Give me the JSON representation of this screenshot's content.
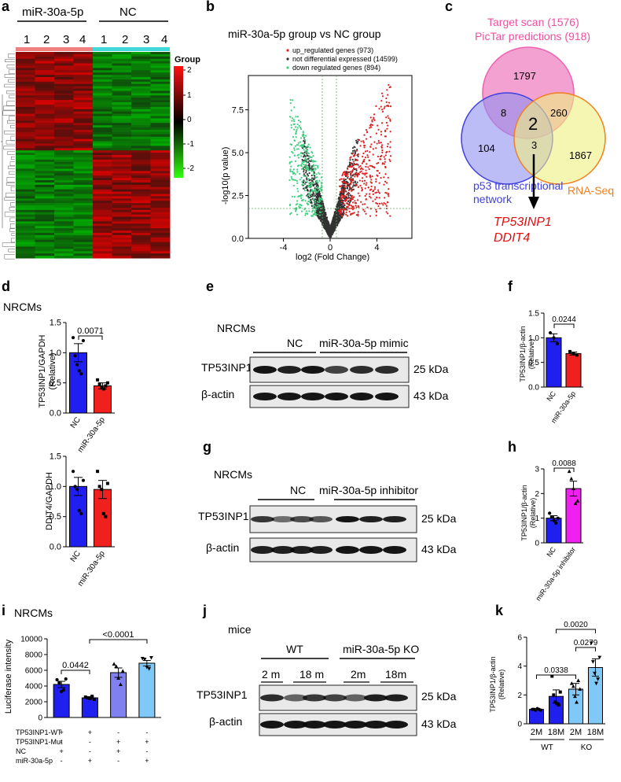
{
  "panels": {
    "a": {
      "label": "a",
      "group1": "miR-30a-5p",
      "group2": "NC",
      "lanes": [
        "1",
        "2",
        "3",
        "4",
        "1",
        "2",
        "3",
        "4"
      ],
      "legend_title": "Group",
      "legend_ticks": [
        "2",
        "1",
        "0",
        "-1",
        "-2"
      ]
    },
    "b": {
      "label": "b",
      "title": "miR-30a-5p group vs NC group",
      "legend": [
        "up_regulated genes (973)",
        "not differential expressed (14599)",
        "down regulated genes (894)"
      ],
      "xlabel": "log2 (Fold Change)",
      "ylabel": "-log10(p value)",
      "xticks": [
        "-4",
        "0",
        "4"
      ],
      "yticks": [
        "0.0",
        "2.5",
        "5.0",
        "7.5"
      ]
    },
    "c": {
      "label": "c",
      "title1": "Target scan (1576)",
      "title2": "PicTar predictions (918)",
      "n_top": "1797",
      "n_left_mid": "8",
      "n_right_mid": "260",
      "n_center": "2",
      "n_left": "104",
      "n_bottom_mid": "3",
      "n_right": "1867",
      "p53_line1": "p53 transcriptional",
      "p53_line2": "network",
      "rnaseq": "RNA-Seq",
      "gene1": "TP53INP1",
      "gene2": "DDIT4"
    },
    "d": {
      "label": "d",
      "cell": "NRCMs",
      "top_ylabel_1": "TP53INP1/GAPDH",
      "top_ylabel_2": "(Relative)",
      "top_pvalue": "0.0071",
      "top_yticks": [
        "0.0",
        "0.5",
        "1.0",
        "1.5"
      ],
      "bottom_ylabel": "DDIT4/GAPDH",
      "bottom_yticks": [
        "0.0",
        "0.5",
        "1.0",
        "1.5"
      ],
      "xcats": [
        "NC",
        "miR-30a-5p"
      ]
    },
    "e": {
      "label": "e",
      "cell": "NRCMs",
      "grp1": "NC",
      "grp2": "miR-30a-5p mimic",
      "band1": "TP53INP1",
      "band2": "β-actin",
      "kda1": "25 kDa",
      "kda2": "43 kDa"
    },
    "f": {
      "label": "f",
      "ylabel_1": "TP53INP1/β-actin",
      "ylabel_2": "(Relative)",
      "pvalue": "0.0244",
      "yticks": [
        "0.0",
        "0.5",
        "1.0",
        "1.5"
      ],
      "xcats": [
        "NC",
        "miR-30a-5p"
      ]
    },
    "g": {
      "label": "g",
      "cell": "NRCMs",
      "grp1": "NC",
      "grp2": "miR-30a-5p inhibitor",
      "band1": "TP53INP1",
      "band2": "β-actin",
      "kda1": "25 kDa",
      "kda2": "43 kDa"
    },
    "h": {
      "label": "h",
      "ylabel_1": "TP53INP1/β-actin",
      "ylabel_2": "(Relative)",
      "pvalue": "0.0088",
      "yticks": [
        "0",
        "1",
        "2",
        "3"
      ],
      "xcats": [
        "NC",
        "miR-30a-5p inhibitor"
      ]
    },
    "i": {
      "label": "i",
      "cell": "NRCMs",
      "ylabel": "Luciferase intensity",
      "yticks": [
        "0",
        "2000",
        "4000",
        "6000",
        "8000",
        "10000"
      ],
      "p1": "0.0442",
      "p2": "<0.0001",
      "rows": [
        {
          "name": "TP53INP1-WT",
          "signs": [
            "+",
            "+",
            "-",
            "-"
          ]
        },
        {
          "name": "TP53INP1-Mut",
          "signs": [
            "-",
            "-",
            "+",
            "+"
          ]
        },
        {
          "name": "NC",
          "signs": [
            "+",
            "-",
            "+",
            "-"
          ]
        },
        {
          "name": "miR-30a-5p",
          "signs": [
            "-",
            "+",
            "-",
            "+"
          ]
        }
      ]
    },
    "j": {
      "label": "j",
      "cell": "mice",
      "grp1": "WT",
      "grp2": "miR-30a-5p KO",
      "sub1": "2 m",
      "sub2": "18 m",
      "sub3": "2m",
      "sub4": "18m",
      "band1": "TP53INP1",
      "band2": "β-actin",
      "kda1": "25 kDa",
      "kda2": "43 kDa"
    },
    "k": {
      "label": "k",
      "ylabel_1": "TP53INP1/β-actin",
      "ylabel_2": "(Relative)",
      "yticks": [
        "0",
        "2",
        "4",
        "6"
      ],
      "xcats": [
        "2M",
        "18M",
        "2M",
        "18M"
      ],
      "g1": "WT",
      "g2": "KO",
      "p1": "0.0338",
      "p2": "0.0279",
      "p3": "0.0020"
    }
  },
  "colors": {
    "nc_blue": "#1f1ff0",
    "mir_red": "#f0201f",
    "magenta": "#f020f0",
    "lightblue": "#80c8f8",
    "purple": "#8080f0",
    "venn_pink": "#f060b0",
    "venn_blue": "#4040e0",
    "venn_orange": "#f08020",
    "gene_red": "#e01010"
  },
  "chart_data": [
    {
      "type": "bar",
      "panel": "d-top",
      "categories": [
        "NC",
        "miR-30a-5p"
      ],
      "values": [
        1.0,
        0.45
      ],
      "errors": [
        0.15,
        0.05
      ],
      "points": [
        [
          1.25,
          0.95,
          0.8,
          0.7,
          0.65,
          1.2
        ],
        [
          0.55,
          0.48,
          0.42,
          0.4,
          0.45,
          0.5
        ]
      ],
      "ylim": [
        0,
        1.5
      ]
    },
    {
      "type": "bar",
      "panel": "d-bottom",
      "categories": [
        "NC",
        "miR-30a-5p"
      ],
      "values": [
        1.0,
        0.95
      ],
      "errors": [
        0.15,
        0.15
      ],
      "points": [
        [
          1.25,
          1.0,
          0.95,
          0.6,
          0.55,
          1.1
        ],
        [
          1.25,
          1.0,
          0.95,
          0.55,
          0.5,
          1.05
        ]
      ],
      "ylim": [
        0,
        1.5
      ]
    },
    {
      "type": "bar",
      "panel": "f",
      "categories": [
        "NC",
        "miR-30a-5p"
      ],
      "values": [
        1.0,
        0.68
      ],
      "errors": [
        0.08,
        0.03
      ],
      "points": [
        [
          1.1,
          1.0,
          0.88
        ],
        [
          0.72,
          0.68,
          0.65
        ]
      ],
      "ylim": [
        0,
        1.5
      ]
    },
    {
      "type": "bar",
      "panel": "h",
      "categories": [
        "NC",
        "miR-30a-5p inhibitor"
      ],
      "values": [
        1.0,
        2.2
      ],
      "errors": [
        0.1,
        0.3
      ],
      "points": [
        [
          1.2,
          1.05,
          0.9,
          0.8,
          1.0
        ],
        [
          2.9,
          2.6,
          2.2,
          1.6,
          1.7
        ]
      ],
      "ylim": [
        0,
        3
      ]
    },
    {
      "type": "bar",
      "panel": "i",
      "categories": [
        "1",
        "2",
        "3",
        "4"
      ],
      "values": [
        4200,
        2500,
        5700,
        6900
      ],
      "errors": [
        400,
        150,
        600,
        350
      ],
      "points": [
        [
          4800,
          4400,
          3300,
          3500,
          4900
        ],
        [
          2600,
          2500,
          2400,
          2700,
          2300
        ],
        [
          6800,
          6500,
          5000,
          4200,
          5900
        ],
        [
          7500,
          7400,
          6400,
          6200,
          7600
        ]
      ],
      "ylim": [
        0,
        10000
      ]
    },
    {
      "type": "bar",
      "panel": "k",
      "categories": [
        "2M",
        "18M",
        "2M",
        "18M"
      ],
      "values": [
        1.0,
        1.9,
        2.4,
        3.9
      ],
      "errors": [
        0.05,
        0.45,
        0.4,
        0.6
      ],
      "points": [
        [
          1.0,
          1.0,
          0.95,
          1.05,
          1.0,
          0.95
        ],
        [
          3.3,
          2.0,
          1.5,
          1.4,
          1.3,
          2.2
        ],
        [
          2.8,
          2.6,
          1.9,
          1.5,
          3.0,
          2.4
        ],
        [
          5.6,
          4.3,
          3.5,
          2.8,
          3.1,
          4.6
        ]
      ],
      "ylim": [
        0,
        6
      ]
    },
    {
      "type": "scatter",
      "panel": "b",
      "xlim": [
        -7,
        7
      ],
      "ylim": [
        0,
        9.5
      ]
    }
  ]
}
